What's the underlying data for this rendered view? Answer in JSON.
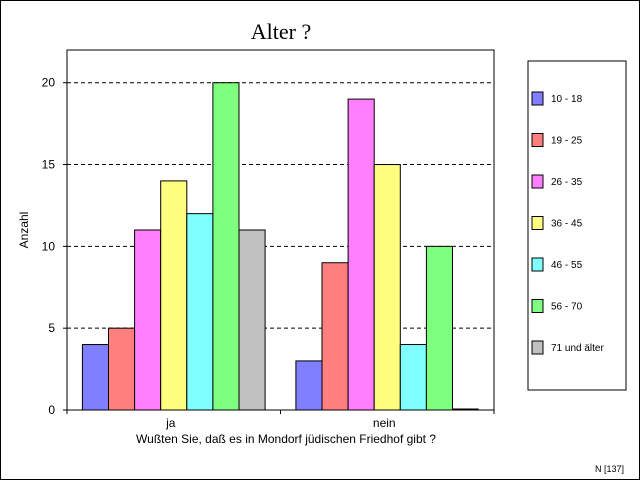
{
  "chart_data": {
    "type": "bar",
    "title": "Alter ?",
    "xlabel": "Wußten Sie, daß es in Mondorf jüdischen Friedhof gibt ?",
    "ylabel": "Anzahl",
    "categories": [
      "ja",
      "nein"
    ],
    "ylim": [
      0,
      22
    ],
    "yticks": [
      0,
      5,
      10,
      15,
      20
    ],
    "grid": "horizontal dashed at 5, 10, 15, 20",
    "legend_position": "right",
    "series": [
      {
        "name": "10 - 18",
        "color": "#7f7fff",
        "values": [
          4,
          3
        ]
      },
      {
        "name": "19 - 25",
        "color": "#ff7f7f",
        "values": [
          5,
          9
        ]
      },
      {
        "name": "26 - 35",
        "color": "#ff7fff",
        "values": [
          11,
          19
        ]
      },
      {
        "name": "36 - 45",
        "color": "#ffff7f",
        "values": [
          14,
          15
        ]
      },
      {
        "name": "46 - 55",
        "color": "#7fffff",
        "values": [
          12,
          4
        ]
      },
      {
        "name": "56 - 70",
        "color": "#7fff7f",
        "values": [
          20,
          10
        ]
      },
      {
        "name": "71 und älter",
        "color": "#c0c0c0",
        "values": [
          11,
          0
        ]
      }
    ]
  },
  "footnote": "N [137]"
}
